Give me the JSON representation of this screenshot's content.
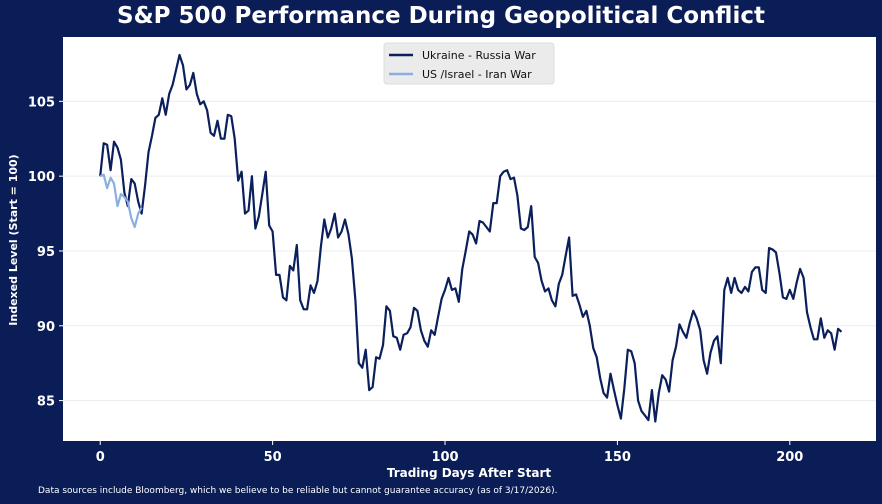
{
  "chart_data": {
    "type": "line",
    "title": "S&P 500 Performance During Geopolitical Conflict",
    "xlabel": "Trading Days After Start",
    "ylabel": "Indexed Level (Start = 100)",
    "xlim": [
      -10.8,
      225
    ],
    "ylim": [
      82.3,
      109.3
    ],
    "xticks": [
      0,
      50,
      100,
      150,
      200
    ],
    "yticks": [
      85,
      90,
      95,
      100,
      105
    ],
    "grid": "horizontal",
    "legend_position": "top-center",
    "series": [
      {
        "name": "Ukraine - Russia War",
        "color": "#0a1f5c",
        "y": [
          100.0,
          102.2,
          102.1,
          100.4,
          102.3,
          101.9,
          101.1,
          98.9,
          98.0,
          99.8,
          99.5,
          98.3,
          97.5,
          99.4,
          101.6,
          102.7,
          103.9,
          104.1,
          105.2,
          104.1,
          105.5,
          106.1,
          107.1,
          108.1,
          107.4,
          105.8,
          106.1,
          106.9,
          105.5,
          104.8,
          105.0,
          104.4,
          102.9,
          102.7,
          103.7,
          102.5,
          102.5,
          104.1,
          104.0,
          102.5,
          99.7,
          100.3,
          97.5,
          97.7,
          100.0,
          96.5,
          97.3,
          98.8,
          100.3,
          96.7,
          96.3,
          93.4,
          93.4,
          91.9,
          91.7,
          94.0,
          93.7,
          95.4,
          91.7,
          91.1,
          91.1,
          92.7,
          92.2,
          93.0,
          95.3,
          97.1,
          95.9,
          96.5,
          97.5,
          95.9,
          96.3,
          97.1,
          96.1,
          94.5,
          91.7,
          87.5,
          87.2,
          88.4,
          85.7,
          85.9,
          87.9,
          87.8,
          88.7,
          91.3,
          91.0,
          89.3,
          89.2,
          88.4,
          89.4,
          89.5,
          89.9,
          91.2,
          91.0,
          89.7,
          89.0,
          88.6,
          89.7,
          89.4,
          90.6,
          91.8,
          92.4,
          93.2,
          92.4,
          92.5,
          91.6,
          93.8,
          95.0,
          96.3,
          96.1,
          95.5,
          97.0,
          96.9,
          96.6,
          96.3,
          98.2,
          98.2,
          100.0,
          100.3,
          100.4,
          99.8,
          99.9,
          98.7,
          96.5,
          96.4,
          96.6,
          98.0,
          94.6,
          94.2,
          93.0,
          92.3,
          92.5,
          91.7,
          91.3,
          92.8,
          93.4,
          94.7,
          95.9,
          92.0,
          92.1,
          91.4,
          90.6,
          91.0,
          90.0,
          88.5,
          87.9,
          86.5,
          85.5,
          85.2,
          86.8,
          85.7,
          84.7,
          83.8,
          85.8,
          88.4,
          88.3,
          87.5,
          85.0,
          84.3,
          84.0,
          83.7,
          85.7,
          83.6,
          85.5,
          86.7,
          86.4,
          85.6,
          87.7,
          88.6,
          90.1,
          89.6,
          89.2,
          90.2,
          91.0,
          90.5,
          89.7,
          87.7,
          86.8,
          88.2,
          89.0,
          89.3,
          87.5,
          92.4,
          93.2,
          92.2,
          93.2,
          92.4,
          92.2,
          92.6,
          92.3,
          93.6,
          93.9,
          93.9,
          92.4,
          92.2,
          95.2,
          95.1,
          94.9,
          93.5,
          91.9,
          91.8,
          92.4,
          91.8,
          92.9,
          93.8,
          93.2,
          90.9,
          89.9,
          89.1,
          89.1,
          90.5,
          89.2,
          89.7,
          89.5,
          88.4,
          89.8,
          89.6
        ]
      },
      {
        "name": "US /Israel - Iran War",
        "color": "#8ab0e0",
        "y": [
          100.0,
          100.1,
          99.2,
          99.9,
          99.5,
          98.0,
          98.8,
          98.6,
          98.3,
          97.2,
          96.6,
          97.5,
          97.9
        ]
      }
    ]
  },
  "footnote": "Data sources include Bloomberg, which we believe to be reliable but cannot guarantee accuracy (as of 3/17/2026)."
}
